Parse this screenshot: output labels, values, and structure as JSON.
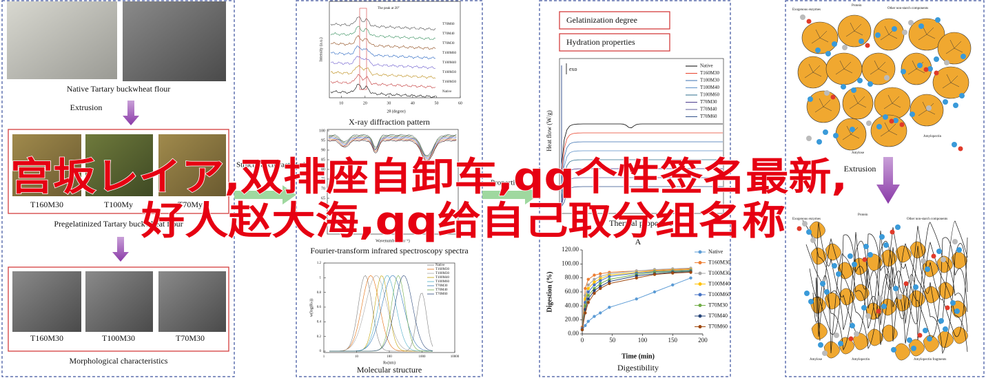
{
  "overlay": {
    "line1": "宫坂レイア,双排座自卸车,qq个性签名最新,",
    "line2": "好人赵大海,qq给自己取分组名称"
  },
  "morphology": {
    "native_caption": "Native Tartary buckwheat flour",
    "extrusion": "Extrusion",
    "samples": [
      "T160M30",
      "T100My",
      "T70My"
    ],
    "pregelatinized_caption": "Pregelatinized Tartary buckwheat flour",
    "sem_samples": [
      "T160M30",
      "T100M30",
      "T70M30"
    ],
    "morph_caption": "Morphological characteristics"
  },
  "structure": {
    "label": "Structural characteristics",
    "xrd": {
      "annotation": "The peak at 20°",
      "series": [
        "T70M60",
        "T70M40",
        "T70M30",
        "T100M60",
        "T100M40",
        "T100M30",
        "T160M30",
        "Native"
      ],
      "xlim": [
        5,
        60
      ],
      "xticks": [
        10,
        20,
        30,
        40,
        50,
        60
      ],
      "xlabel": "2θ (degree)",
      "ylabel": "Intensity (a.u.)",
      "caption": "X-ray diffraction pattern"
    },
    "ftir": {
      "ylim": [
        50,
        100
      ],
      "yticks": [
        100,
        95,
        90,
        85,
        80,
        75,
        70,
        65
      ],
      "xlabel": "Wavenumber (cm⁻¹)",
      "caption": "Fourier-transform infrared spectroscopy spectra"
    },
    "molecular": {
      "series": [
        {
          "name": "Native",
          "color": "#7f7f7f"
        },
        {
          "name": "T160M30",
          "color": "#e46c0a"
        },
        {
          "name": "T100M30",
          "color": "#a5a5a5"
        },
        {
          "name": "T100M40",
          "color": "#c0a000"
        },
        {
          "name": "T100M60",
          "color": "#4bacc6"
        },
        {
          "name": "T70M30",
          "color": "#2e75b6"
        },
        {
          "name": "T70M40",
          "color": "#70ad47"
        },
        {
          "name": "T70M60",
          "color": "#264478"
        }
      ],
      "ylim": [
        0,
        1.2
      ],
      "yticks": [
        0,
        0.2,
        0.4,
        0.6,
        0.8,
        1,
        1.2
      ],
      "xlim": [
        1,
        10000
      ],
      "xticks": [
        1,
        10,
        100,
        1000,
        10000
      ],
      "log_x": true,
      "xlabel": "Rₕ(nm)",
      "ylabel": "w(log(Rₕ))",
      "caption": "Molecular structure"
    }
  },
  "properties": {
    "label": "Properties",
    "gelatinization": "Gelatinization degree",
    "hydration": "Hydration properties",
    "dsc": {
      "exo": "exo",
      "ylabel": "Heat flow (W/g)",
      "caption": "Thermal properties",
      "panel_letter": "A",
      "series": [
        {
          "name": "Native",
          "color": "#000000"
        },
        {
          "name": "T160M30",
          "color": "#e8412b"
        },
        {
          "name": "T100M30",
          "color": "#3a6fb0"
        },
        {
          "name": "T100M40",
          "color": "#5b8fc8"
        },
        {
          "name": "T100M60",
          "color": "#2c6e8e"
        },
        {
          "name": "T70M30",
          "color": "#4a3a8c"
        },
        {
          "name": "T70M40",
          "color": "#5e5e9e"
        },
        {
          "name": "T70M60",
          "color": "#30508a"
        }
      ]
    }
  },
  "chart_data": {
    "type": "line",
    "caption": "Digestibility",
    "xlabel": "Time (min)",
    "ylabel": "Digestion (%)",
    "x": [
      0,
      5,
      10,
      20,
      30,
      45,
      90,
      120,
      150,
      180
    ],
    "xlim": [
      0,
      200
    ],
    "xticks": [
      0,
      50,
      100,
      150,
      200
    ],
    "ylim": [
      0,
      120
    ],
    "yticks": [
      {
        "value": 0,
        "label": "0.00"
      },
      {
        "value": 20,
        "label": "20.00"
      },
      {
        "value": 40,
        "label": "40.00"
      },
      {
        "value": 60,
        "label": "60.00"
      },
      {
        "value": 80,
        "label": "80.00"
      },
      {
        "value": 100,
        "label": "100.00"
      },
      {
        "value": 120,
        "label": "120.00"
      }
    ],
    "series": [
      {
        "name": "Native",
        "color": "#5b9bd5",
        "values": [
          6,
          12,
          18,
          25,
          30,
          38,
          50,
          60,
          70,
          80
        ]
      },
      {
        "name": "T160M30",
        "color": "#ed7d31",
        "values": [
          10,
          65,
          78,
          84,
          86,
          88,
          90,
          91,
          92,
          93
        ]
      },
      {
        "name": "T100M30",
        "color": "#a5a5a5",
        "values": [
          8,
          55,
          70,
          78,
          82,
          86,
          90,
          92,
          93,
          94
        ]
      },
      {
        "name": "T100M40",
        "color": "#ffc000",
        "values": [
          8,
          50,
          65,
          74,
          79,
          84,
          88,
          90,
          91,
          92
        ]
      },
      {
        "name": "T100M60",
        "color": "#4472c4",
        "values": [
          8,
          45,
          60,
          70,
          76,
          82,
          87,
          89,
          90,
          91
        ]
      },
      {
        "name": "T70M30",
        "color": "#70ad47",
        "values": [
          6,
          40,
          55,
          65,
          72,
          78,
          85,
          88,
          89,
          90
        ]
      },
      {
        "name": "T70M40",
        "color": "#264478",
        "values": [
          6,
          35,
          50,
          62,
          68,
          75,
          83,
          86,
          88,
          89
        ]
      },
      {
        "name": "T70M60",
        "color": "#9e480e",
        "values": [
          6,
          30,
          45,
          58,
          65,
          72,
          80,
          85,
          87,
          88
        ]
      }
    ]
  },
  "mechanism": {
    "top": {
      "enzymes": "Exogenous enzymes",
      "protein": "Protein",
      "other": "Other non-starch components",
      "amylose": "Amylose",
      "amylopectin": "Amylopectin"
    },
    "extrusion": "Extrusion",
    "bottom": {
      "enzymes": "Exogenous enzymes",
      "protein": "Protein",
      "other": "Other non-starch components",
      "amylose": "Amylose",
      "amylopectin": "Amylopectin",
      "fragments": "Amylopectin fragments"
    }
  }
}
